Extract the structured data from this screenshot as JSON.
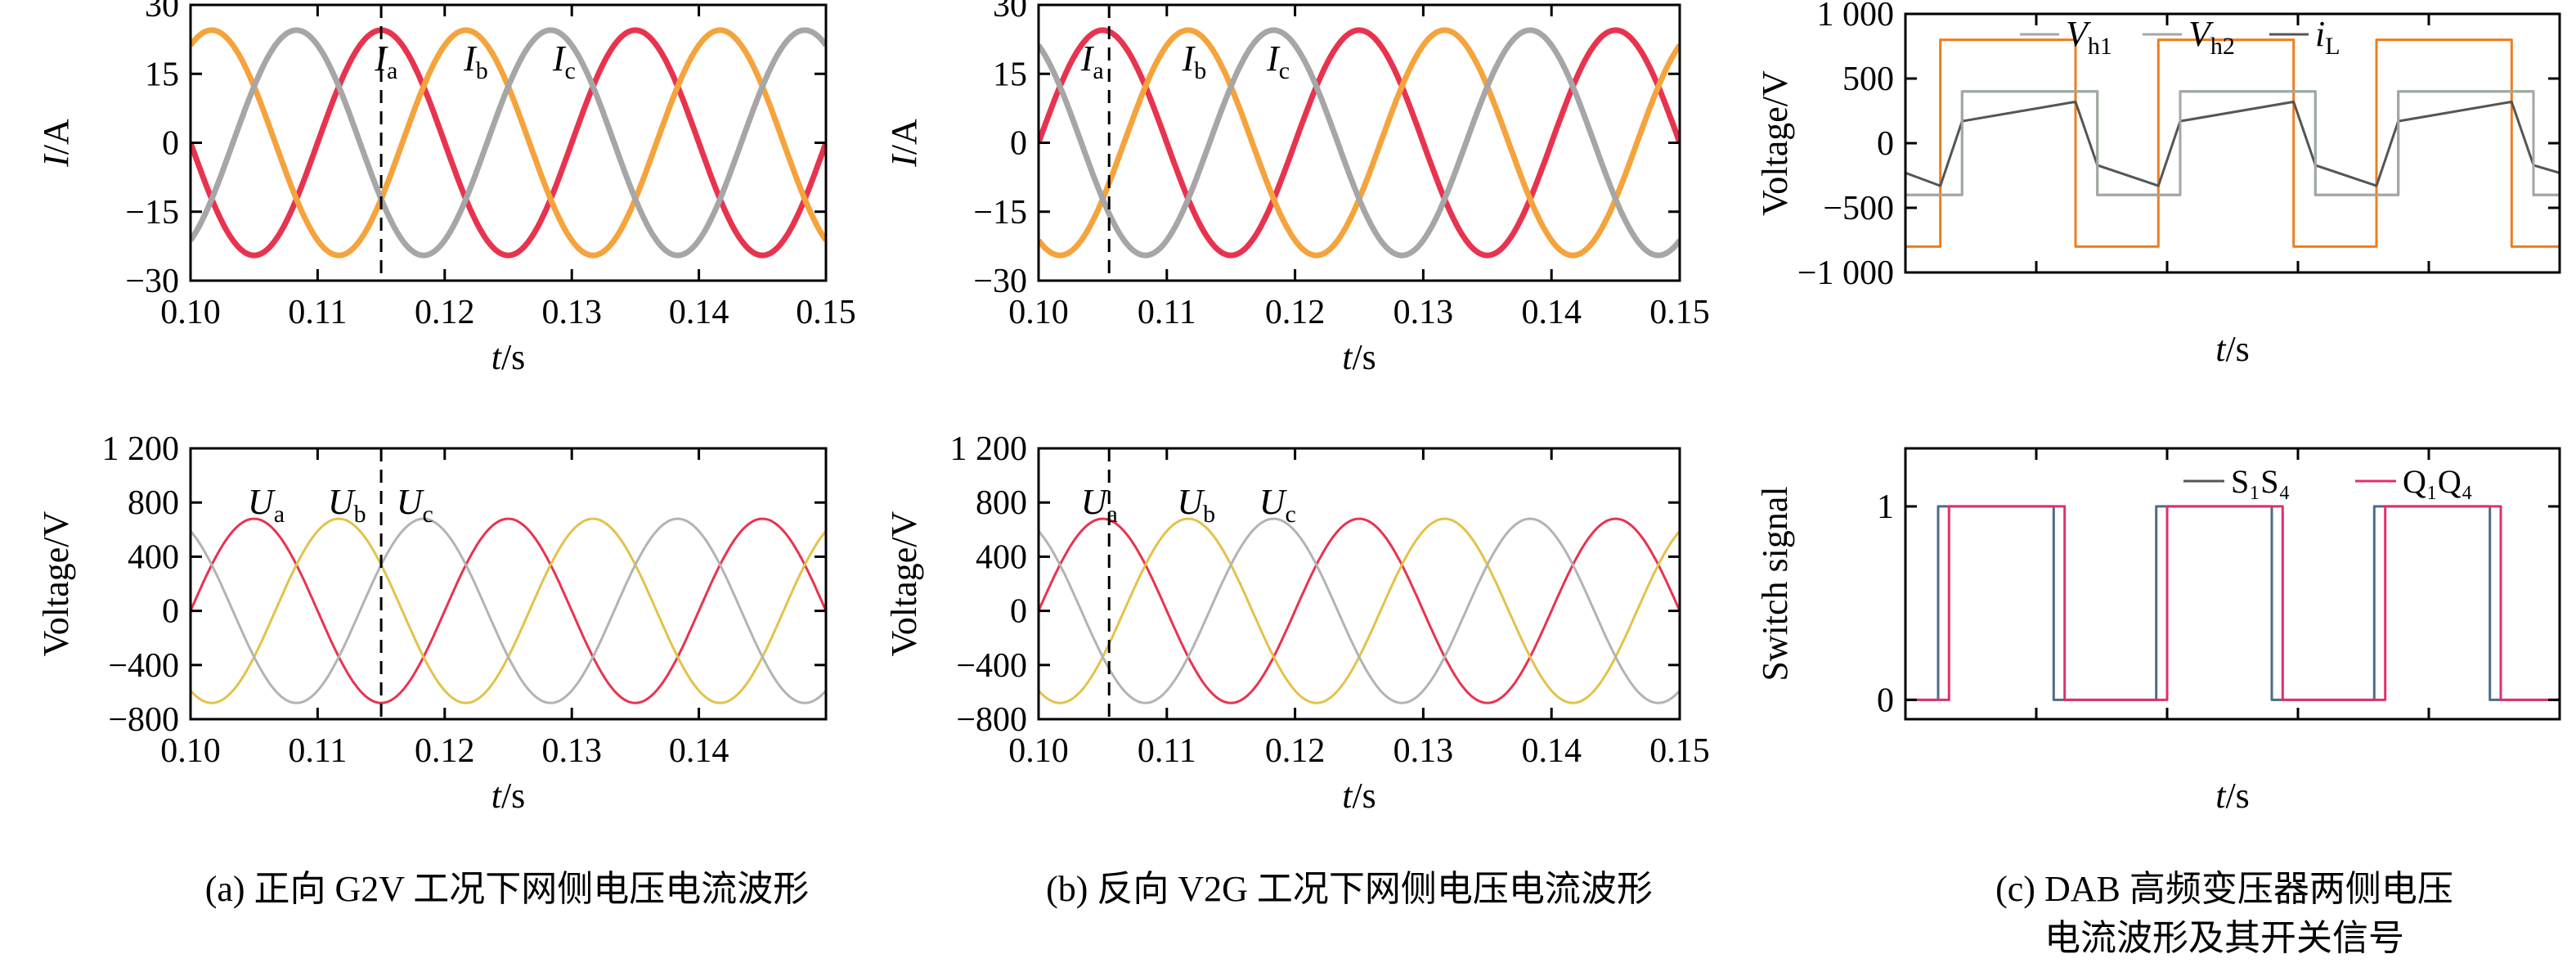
{
  "chart_data": [
    {
      "id": "a-current",
      "type": "line",
      "xlabel": "t/s",
      "ylabel": "I/A",
      "xlim": [
        0.1,
        0.15
      ],
      "ylim": [
        -30,
        30
      ],
      "xticks": [
        "0.10",
        "0.11",
        "0.12",
        "0.13",
        "0.14",
        "0.15"
      ],
      "yticks": [
        "30",
        "15",
        "0",
        "-15",
        "-30"
      ],
      "series": [
        {
          "name": "Ia",
          "amplitude": 24.5,
          "frequency_hz": 50,
          "phase_deg": 180,
          "color": "#e8334f"
        },
        {
          "name": "Ib",
          "amplitude": 24.5,
          "frequency_hz": 50,
          "phase_deg": 60,
          "color": "#f5a33c"
        },
        {
          "name": "Ic",
          "amplitude": 24.5,
          "frequency_hz": 50,
          "phase_deg": -60,
          "color": "#a6a6a6"
        }
      ],
      "marker_x": 0.115,
      "annotations": [
        {
          "base": "I",
          "sub": "a",
          "x": 0.1145
        },
        {
          "base": "I",
          "sub": "b",
          "x": 0.1215
        },
        {
          "base": "I",
          "sub": "c",
          "x": 0.1285
        }
      ]
    },
    {
      "id": "a-voltage",
      "type": "line",
      "xlabel": "t/s",
      "ylabel": "Voltage/V",
      "xlim": [
        0.1,
        0.15
      ],
      "ylim": [
        -800,
        1200
      ],
      "xticks": [
        "0.10",
        "0.11",
        "0.12",
        "0.13",
        "0.14"
      ],
      "yticks": [
        "1 200",
        "800",
        "400",
        "0",
        "-400",
        "-800"
      ],
      "series": [
        {
          "name": "Ua",
          "amplitude": 680,
          "frequency_hz": 50,
          "phase_deg": 0,
          "color": "#e8334f"
        },
        {
          "name": "Ub",
          "amplitude": 680,
          "frequency_hz": 50,
          "phase_deg": -120,
          "color": "#e3c24a"
        },
        {
          "name": "Uc",
          "amplitude": 680,
          "frequency_hz": 50,
          "phase_deg": 120,
          "color": "#b3b3b3"
        }
      ],
      "marker_x": 0.115,
      "annotations": [
        {
          "base": "U",
          "sub": "a",
          "x": 0.1045
        },
        {
          "base": "U",
          "sub": "b",
          "x": 0.1108
        },
        {
          "base": "U",
          "sub": "c",
          "x": 0.1162
        }
      ]
    },
    {
      "id": "b-current",
      "type": "line",
      "xlabel": "t/s",
      "ylabel": "I/A",
      "xlim": [
        0.1,
        0.15
      ],
      "ylim": [
        -30,
        30
      ],
      "xticks": [
        "0.10",
        "0.11",
        "0.12",
        "0.13",
        "0.14",
        "0.15"
      ],
      "yticks": [
        "30",
        "15",
        "0",
        "-15",
        "-30"
      ],
      "series": [
        {
          "name": "Ia",
          "amplitude": 24.5,
          "frequency_hz": 50,
          "phase_deg": 0,
          "color": "#e8334f"
        },
        {
          "name": "Ib",
          "amplitude": 24.5,
          "frequency_hz": 50,
          "phase_deg": -120,
          "color": "#f5a33c"
        },
        {
          "name": "Ic",
          "amplitude": 24.5,
          "frequency_hz": 50,
          "phase_deg": 120,
          "color": "#a6a6a6"
        }
      ],
      "marker_x": 0.1055,
      "annotations": [
        {
          "base": "I",
          "sub": "a",
          "x": 0.1033
        },
        {
          "base": "I",
          "sub": "b",
          "x": 0.1112
        },
        {
          "base": "I",
          "sub": "c",
          "x": 0.1178
        }
      ]
    },
    {
      "id": "b-voltage",
      "type": "line",
      "xlabel": "t/s",
      "ylabel": "Voltage/V",
      "xlim": [
        0.1,
        0.15
      ],
      "ylim": [
        -800,
        1200
      ],
      "xticks": [
        "0.10",
        "0.11",
        "0.12",
        "0.13",
        "0.14",
        "0.15"
      ],
      "yticks": [
        "1 200",
        "800",
        "400",
        "0",
        "-400",
        "-800"
      ],
      "series": [
        {
          "name": "Ua",
          "amplitude": 680,
          "frequency_hz": 50,
          "phase_deg": 0,
          "color": "#e8334f"
        },
        {
          "name": "Ub",
          "amplitude": 680,
          "frequency_hz": 50,
          "phase_deg": -120,
          "color": "#e3c24a"
        },
        {
          "name": "Uc",
          "amplitude": 680,
          "frequency_hz": 50,
          "phase_deg": 120,
          "color": "#b3b3b3"
        }
      ],
      "marker_x": 0.1055,
      "annotations": [
        {
          "base": "U",
          "sub": "a",
          "x": 0.1033
        },
        {
          "base": "U",
          "sub": "b",
          "x": 0.1108
        },
        {
          "base": "U",
          "sub": "c",
          "x": 0.1172
        }
      ]
    },
    {
      "id": "c-voltage",
      "type": "line",
      "xlabel": "t/s",
      "ylabel": "Voltage/V",
      "xlim": [
        0,
        3
      ],
      "ylim": [
        -1000,
        1000
      ],
      "xticks": [
        "",
        "",
        "",
        "",
        "",
        ""
      ],
      "yticks": [
        "1 000",
        "500",
        "0",
        "-500",
        "-1 000"
      ],
      "series": [
        {
          "name": "Vh1",
          "color": "#f07c1d",
          "x": [
            0,
            0.16,
            0.16,
            0.78,
            0.78,
            1.16,
            1.16,
            1.78,
            1.78,
            2.16,
            2.16,
            2.78,
            2.78,
            3.0
          ],
          "values": [
            -800,
            -800,
            800,
            800,
            -800,
            -800,
            800,
            800,
            -800,
            -800,
            800,
            800,
            -800,
            -800
          ]
        },
        {
          "name": "Vh2",
          "color": "#4caf50",
          "x": [
            0,
            0.26,
            0.26,
            0.88,
            0.88,
            1.26,
            1.26,
            1.88,
            1.88,
            2.26,
            2.26,
            2.88,
            2.88,
            3.0
          ],
          "values": [
            -400,
            -400,
            400,
            400,
            -400,
            -400,
            400,
            400,
            -400,
            -400,
            400,
            400,
            -400,
            -400
          ]
        },
        {
          "name": "iL",
          "color": "#555555",
          "x": [
            0,
            0.16,
            0.26,
            0.78,
            0.88,
            1.16,
            1.26,
            1.78,
            1.88,
            2.16,
            2.26,
            2.78,
            2.88,
            3.0
          ],
          "values": [
            -230,
            -330,
            170,
            320,
            -170,
            -330,
            170,
            320,
            -170,
            -330,
            170,
            320,
            -170,
            -230
          ]
        },
        {
          "name": "Vh2-overlay",
          "color": "#a6a6a6",
          "x": [
            0,
            0.26,
            0.26,
            0.88,
            0.88,
            1.26,
            1.26,
            1.88,
            1.88,
            2.26,
            2.26,
            2.88,
            2.88,
            3.0
          ],
          "values": [
            -400,
            -400,
            400,
            400,
            -400,
            -400,
            400,
            400,
            -400,
            -400,
            400,
            400,
            -400,
            -400
          ]
        }
      ],
      "legend": [
        {
          "base": "V",
          "sub": "h1",
          "color": "#a6a6a6"
        },
        {
          "base": "V",
          "sub": "h2",
          "color": "#a6a6a6"
        },
        {
          "base": "i",
          "sub": "L",
          "color": "#555555"
        }
      ]
    },
    {
      "id": "c-switch",
      "type": "line",
      "xlabel": "t/s",
      "ylabel": "Switch signal",
      "xlim": [
        0,
        3
      ],
      "ylim": [
        -0.1,
        1.3
      ],
      "xticks": [
        "",
        "",
        "",
        "",
        "",
        ""
      ],
      "yticks": [
        "1",
        "0"
      ],
      "series": [
        {
          "name": "S1S4",
          "color": "#4d6b8a",
          "x": [
            0,
            0.15,
            0.15,
            0.68,
            0.68,
            1.15,
            1.15,
            1.68,
            1.68,
            2.15,
            2.15,
            2.68,
            2.68,
            3.0
          ],
          "values": [
            0,
            0,
            1,
            1,
            0,
            0,
            1,
            1,
            0,
            0,
            1,
            1,
            0,
            0
          ]
        },
        {
          "name": "Q1Q4",
          "color": "#e0306a",
          "x": [
            0,
            0.2,
            0.2,
            0.73,
            0.73,
            1.2,
            1.2,
            1.73,
            1.73,
            2.2,
            2.2,
            2.73,
            2.73,
            3.0
          ],
          "values": [
            0,
            0,
            1,
            1,
            0,
            0,
            1,
            1,
            0,
            0,
            1,
            1,
            0,
            0
          ]
        }
      ],
      "legend": [
        {
          "label": "S₁S₄",
          "color": "#555555"
        },
        {
          "label": "Q₁Q₄",
          "color": "#e0306a"
        }
      ]
    }
  ],
  "captions": {
    "a": "(a) 正向 G2V 工况下网侧电压电流波形",
    "b": "(b) 反向 V2G 工况下网侧电压电流波形",
    "c_line1": "(c) DAB 高频变压器两侧电压",
    "c_line2": "电流波形及其开关信号"
  }
}
